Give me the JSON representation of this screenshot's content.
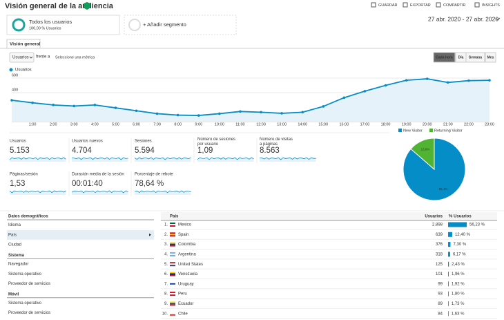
{
  "header": {
    "title": "Visión general de la audiencia",
    "actions": [
      "GUARDAR",
      "EXPORTAR",
      "COMPARTIR",
      "INSIGHTS"
    ]
  },
  "segments": {
    "active": {
      "name": "Todos los usuarios",
      "detail": "100,00 % Usuarios"
    },
    "add": "+ Añadir segmento"
  },
  "date_range": "27 abr. 2020 - 27 abr. 2020",
  "tab": "Visión general",
  "controls": {
    "metric": "Usuarios",
    "versus": "frente a",
    "select_metric": "Seleccione una métrica",
    "granularity": [
      "Cada hora",
      "Día",
      "Semana",
      "Mes"
    ],
    "selected": 0
  },
  "chart_data": [
    {
      "type": "line",
      "categories": [
        null,
        "1:00",
        "2:00",
        "3:00",
        "4:00",
        "5:00",
        "6:00",
        "7:00",
        "8:00",
        "9:00",
        "10:00",
        "11:00",
        "12:00",
        "13:00",
        "14:00",
        "15:00",
        "16:00",
        "17:00",
        "18:00",
        "19:00",
        "20:00",
        "21:00",
        "22:00",
        "23:00"
      ],
      "series": [
        {
          "name": "Usuarios",
          "color": "#058dc7",
          "values": [
            295,
            260,
            230,
            215,
            230,
            190,
            150,
            110,
            90,
            85,
            110,
            140,
            130,
            115,
            130,
            210,
            330,
            420,
            500,
            570,
            590,
            540,
            565,
            570
          ]
        }
      ],
      "ylim": [
        0,
        600
      ],
      "yticks": [
        400,
        600
      ],
      "grid": true
    },
    {
      "type": "pie",
      "categories": [
        "New Visitor",
        "Returning Visitor"
      ],
      "values": [
        86.4,
        13.6
      ],
      "value_labels": [
        "86,4%",
        "13,6%"
      ],
      "colors": [
        "#058dc7",
        "#50b432"
      ],
      "legend": "top"
    }
  ],
  "metrics": [
    {
      "label": "Usuarios",
      "value": "5.153"
    },
    {
      "label": "Usuarios nuevos",
      "value": "4.704"
    },
    {
      "label": "Sesiones",
      "value": "5.594"
    },
    {
      "label": "Número de sesiones por usuario",
      "value": "1,09"
    },
    {
      "label": "Número de visitas a páginas",
      "value": "8.563"
    },
    {
      "label": "Páginas/sesión",
      "value": "1,53"
    },
    {
      "label": "Duración media de la sesión",
      "value": "00:01:40"
    },
    {
      "label": "Porcentaje de rebote",
      "value": "78,64 %"
    }
  ],
  "sidebar": [
    {
      "title": "Datos demográficos",
      "items": [
        "Idioma",
        "País",
        "Ciudad"
      ],
      "selected": 1
    },
    {
      "title": "Sistema",
      "items": [
        "Navegador",
        "Sistema operativo",
        "Proveedor de servicios"
      ]
    },
    {
      "title": "Móvil",
      "items": [
        "Sistema operativo",
        "Proveedor de servicios"
      ]
    }
  ],
  "table": {
    "columns": [
      "País",
      "Usuarios",
      "% Usuarios"
    ],
    "rows": [
      {
        "rank": "1.",
        "country": "Mexico",
        "users": "2.898",
        "percent": 56.23,
        "percent_label": "56,23 %"
      },
      {
        "rank": "2.",
        "country": "Spain",
        "users": "639",
        "percent": 12.4,
        "percent_label": "12,40 %"
      },
      {
        "rank": "3.",
        "country": "Colombia",
        "users": "376",
        "percent": 7.3,
        "percent_label": "7,30 %"
      },
      {
        "rank": "4.",
        "country": "Argentina",
        "users": "318",
        "percent": 6.17,
        "percent_label": "6,17 %"
      },
      {
        "rank": "5.",
        "country": "United States",
        "users": "125",
        "percent": 2.43,
        "percent_label": "2,43 %"
      },
      {
        "rank": "6.",
        "country": "Venezuela",
        "users": "101",
        "percent": 1.96,
        "percent_label": "1,96 %"
      },
      {
        "rank": "7.",
        "country": "Uruguay",
        "users": "99",
        "percent": 1.92,
        "percent_label": "1,92 %"
      },
      {
        "rank": "8.",
        "country": "Peru",
        "users": "93",
        "percent": 1.8,
        "percent_label": "1,80 %"
      },
      {
        "rank": "9.",
        "country": "Ecuador",
        "users": "89",
        "percent": 1.73,
        "percent_label": "1,73 %"
      },
      {
        "rank": "10.",
        "country": "Chile",
        "users": "84",
        "percent": 1.63,
        "percent_label": "1,63 %"
      }
    ]
  }
}
